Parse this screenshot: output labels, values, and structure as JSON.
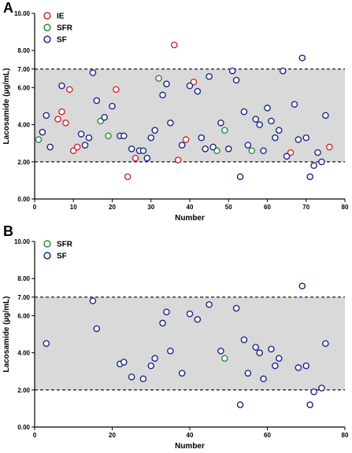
{
  "colors": {
    "IE": "#d0282f",
    "SFR": "#2e8b3a",
    "SF": "#1c2a8a",
    "band": "#d9d9d9"
  },
  "chart_data": [
    {
      "type": "scatter",
      "panel": "A",
      "xlabel": "Number",
      "ylabel": "Lacosamide (µg/mL)",
      "xlim": [
        0,
        80
      ],
      "ylim": [
        0,
        10
      ],
      "x_ticks": [
        "0",
        "10",
        "20",
        "30",
        "40",
        "50",
        "60",
        "70",
        "80"
      ],
      "y_ticks": [
        "0.00",
        "2.00",
        "4.00",
        "6.00",
        "8.00",
        "10.00"
      ],
      "ref_lines": [
        "2.00",
        "7.00"
      ],
      "band": [
        2,
        7
      ],
      "legend_position": "top-left",
      "series": [
        {
          "name": "IE",
          "color": "#d0282f",
          "points": [
            [
              6,
              4.3
            ],
            [
              7,
              4.7
            ],
            [
              8,
              4.1
            ],
            [
              9,
              5.9
            ],
            [
              10,
              2.6
            ],
            [
              11,
              2.8
            ],
            [
              21,
              5.9
            ],
            [
              24,
              1.2
            ],
            [
              26,
              2.2
            ],
            [
              36,
              8.3
            ],
            [
              37,
              2.1
            ],
            [
              39,
              3.2
            ],
            [
              41,
              6.3
            ],
            [
              66,
              2.5
            ],
            [
              76,
              2.8
            ]
          ]
        },
        {
          "name": "SFR",
          "color": "#2e8b3a",
          "points": [
            [
              1,
              3.2
            ],
            [
              17,
              4.2
            ],
            [
              19,
              3.4
            ],
            [
              32,
              6.5
            ],
            [
              47,
              2.6
            ],
            [
              49,
              3.7
            ],
            [
              56,
              2.6
            ]
          ]
        },
        {
          "name": "SF",
          "color": "#1c2a8a",
          "points": [
            [
              2,
              3.6
            ],
            [
              3,
              4.5
            ],
            [
              4,
              2.8
            ],
            [
              7,
              6.1
            ],
            [
              12,
              3.5
            ],
            [
              13,
              2.9
            ],
            [
              14,
              3.3
            ],
            [
              15,
              6.8
            ],
            [
              16,
              5.3
            ],
            [
              18,
              4.4
            ],
            [
              20,
              5.0
            ],
            [
              22,
              3.4
            ],
            [
              23,
              3.4
            ],
            [
              25,
              2.7
            ],
            [
              27,
              2.6
            ],
            [
              28,
              2.6
            ],
            [
              29,
              2.2
            ],
            [
              30,
              3.3
            ],
            [
              31,
              3.7
            ],
            [
              33,
              5.6
            ],
            [
              34,
              6.2
            ],
            [
              35,
              4.1
            ],
            [
              38,
              2.9
            ],
            [
              40,
              6.1
            ],
            [
              42,
              5.8
            ],
            [
              43,
              3.3
            ],
            [
              44,
              2.7
            ],
            [
              45,
              6.6
            ],
            [
              46,
              2.8
            ],
            [
              48,
              4.1
            ],
            [
              50,
              2.7
            ],
            [
              51,
              6.9
            ],
            [
              52,
              6.4
            ],
            [
              53,
              1.2
            ],
            [
              54,
              4.7
            ],
            [
              55,
              2.9
            ],
            [
              57,
              4.3
            ],
            [
              58,
              4.0
            ],
            [
              59,
              2.6
            ],
            [
              60,
              4.9
            ],
            [
              61,
              4.2
            ],
            [
              62,
              3.3
            ],
            [
              63,
              3.7
            ],
            [
              64,
              6.9
            ],
            [
              65,
              2.3
            ],
            [
              67,
              5.1
            ],
            [
              68,
              3.2
            ],
            [
              69,
              7.6
            ],
            [
              70,
              3.3
            ],
            [
              71,
              1.2
            ],
            [
              72,
              1.8
            ],
            [
              73,
              2.5
            ],
            [
              74,
              2.0
            ],
            [
              75,
              4.5
            ]
          ]
        }
      ]
    },
    {
      "type": "scatter",
      "panel": "B",
      "xlabel": "Number",
      "ylabel": "Lacosamide (µg/mL)",
      "xlim": [
        0,
        80
      ],
      "ylim": [
        0,
        10
      ],
      "x_ticks": [
        "0",
        "20",
        "40",
        "60",
        "80"
      ],
      "y_ticks": [
        "0.00",
        "2.00",
        "4.00",
        "6.00",
        "8.00",
        "10.00"
      ],
      "ref_lines": [
        "2.00",
        "7.00"
      ],
      "band": [
        2,
        7
      ],
      "legend_position": "top-left",
      "series": [
        {
          "name": "SFR",
          "color": "#2e8b3a",
          "points": [
            [
              49,
              3.7
            ]
          ]
        },
        {
          "name": "SF",
          "color": "#1c2a8a",
          "points": [
            [
              3,
              4.5
            ],
            [
              15,
              6.8
            ],
            [
              16,
              5.3
            ],
            [
              22,
              3.4
            ],
            [
              23,
              3.5
            ],
            [
              25,
              2.7
            ],
            [
              28,
              2.6
            ],
            [
              30,
              3.3
            ],
            [
              31,
              3.7
            ],
            [
              33,
              5.6
            ],
            [
              34,
              6.2
            ],
            [
              35,
              4.1
            ],
            [
              38,
              2.9
            ],
            [
              40,
              6.1
            ],
            [
              42,
              5.8
            ],
            [
              45,
              6.6
            ],
            [
              48,
              4.1
            ],
            [
              52,
              6.4
            ],
            [
              53,
              1.2
            ],
            [
              54,
              4.7
            ],
            [
              55,
              2.9
            ],
            [
              57,
              4.3
            ],
            [
              58,
              4.0
            ],
            [
              59,
              2.6
            ],
            [
              61,
              4.2
            ],
            [
              62,
              3.3
            ],
            [
              63,
              3.7
            ],
            [
              68,
              3.2
            ],
            [
              69,
              7.6
            ],
            [
              70,
              3.3
            ],
            [
              71,
              1.2
            ],
            [
              72,
              1.9
            ],
            [
              74,
              2.1
            ],
            [
              75,
              4.5
            ]
          ]
        }
      ]
    }
  ]
}
